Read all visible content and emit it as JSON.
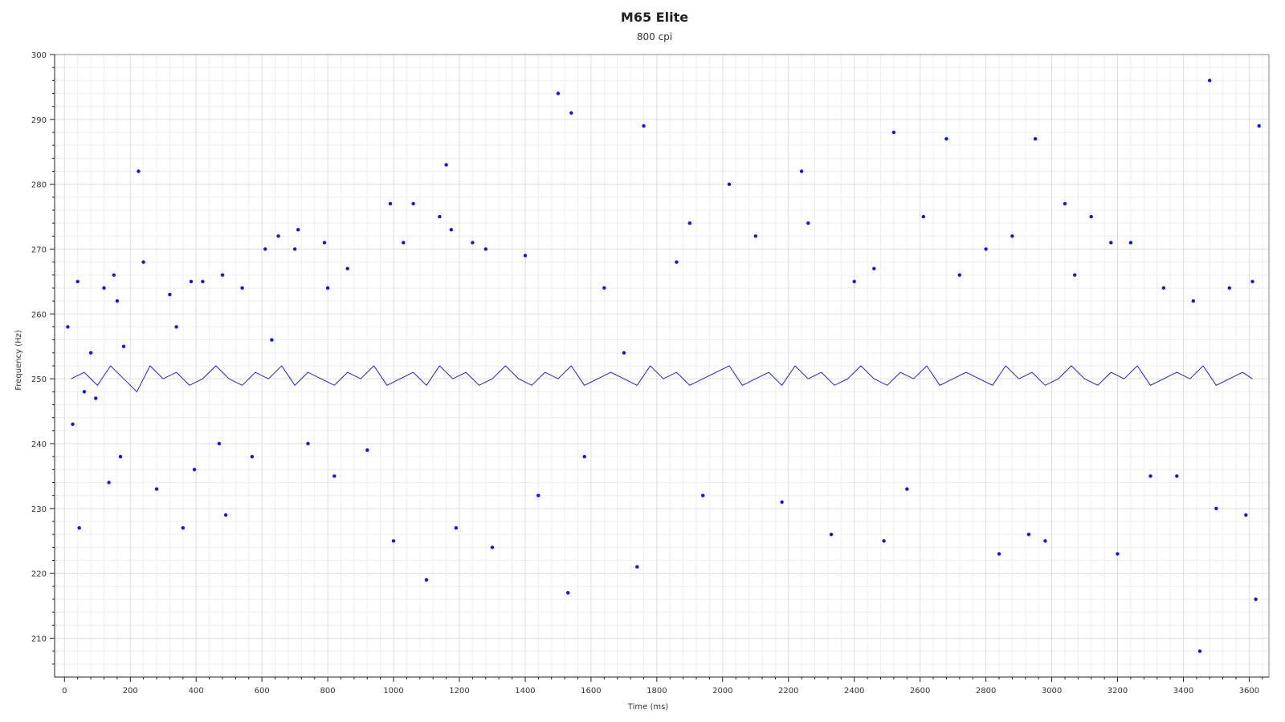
{
  "chart_data": {
    "type": "scatter",
    "title": "M65 Elite",
    "subtitle": "800 cpi",
    "xlabel": "Time (ms)",
    "ylabel": "Frequency (Hz)",
    "xlim": [
      -30,
      3660
    ],
    "ylim": [
      204,
      300
    ],
    "xticks": [
      0,
      200,
      400,
      600,
      800,
      1000,
      1200,
      1400,
      1600,
      1800,
      2000,
      2200,
      2400,
      2600,
      2800,
      3000,
      3200,
      3400,
      3600
    ],
    "yticks": [
      210,
      220,
      230,
      240,
      250,
      260,
      270,
      280,
      290,
      300
    ],
    "grid": true,
    "colors": {
      "points": "#1010ff",
      "line": "#1f1fd8"
    },
    "series": [
      {
        "kind": "points",
        "x": [
          10,
          25,
          40,
          45,
          60,
          80,
          95,
          120,
          135,
          150,
          160,
          170,
          180,
          225,
          240,
          280,
          320,
          340,
          360,
          385,
          395,
          420,
          470,
          480,
          490,
          540,
          570,
          610,
          630,
          650,
          700,
          710,
          740,
          790,
          800,
          820,
          860,
          920,
          990,
          1000,
          1030,
          1060,
          1100,
          1140,
          1160,
          1175,
          1190,
          1240,
          1280,
          1300,
          1400,
          1440,
          1500,
          1530,
          1540,
          1580,
          1640,
          1700,
          1740,
          1760,
          1860,
          1900,
          1940,
          2020,
          2100,
          2180,
          2240,
          2260,
          2330,
          2400,
          2460,
          2490,
          2520,
          2560,
          2610,
          2680,
          2720,
          2800,
          2840,
          2880,
          2930,
          2950,
          2980,
          3040,
          3070,
          3120,
          3180,
          3200,
          3240,
          3300,
          3340,
          3380,
          3430,
          3450,
          3480,
          3500,
          3540,
          3590,
          3610,
          3620,
          3630
        ],
        "y": [
          258,
          243,
          265,
          227,
          248,
          254,
          247,
          264,
          234,
          266,
          262,
          238,
          255,
          282,
          268,
          233,
          263,
          258,
          227,
          265,
          236,
          265,
          240,
          266,
          229,
          264,
          238,
          270,
          256,
          272,
          270,
          273,
          240,
          271,
          264,
          235,
          267,
          239,
          277,
          225,
          271,
          277,
          219,
          275,
          283,
          273,
          227,
          271,
          270,
          224,
          269,
          232,
          294,
          217,
          291,
          238,
          264,
          254,
          221,
          289,
          268,
          274,
          232,
          280,
          272,
          231,
          282,
          274,
          226,
          265,
          267,
          225,
          288,
          233,
          275,
          287,
          266,
          270,
          223,
          272,
          226,
          287,
          225,
          277,
          266,
          275,
          271,
          223,
          271,
          235,
          264,
          235,
          262,
          208,
          296,
          230,
          264,
          229,
          265,
          216,
          289
        ]
      },
      {
        "kind": "line",
        "x": [
          20,
          60,
          100,
          140,
          180,
          220,
          260,
          300,
          340,
          380,
          420,
          460,
          500,
          540,
          580,
          620,
          660,
          700,
          740,
          780,
          820,
          860,
          900,
          940,
          980,
          1020,
          1060,
          1100,
          1140,
          1180,
          1220,
          1260,
          1300,
          1340,
          1380,
          1420,
          1460,
          1500,
          1540,
          1580,
          1620,
          1660,
          1700,
          1740,
          1780,
          1820,
          1860,
          1900,
          1940,
          1980,
          2020,
          2060,
          2100,
          2140,
          2180,
          2220,
          2260,
          2300,
          2340,
          2380,
          2420,
          2460,
          2500,
          2540,
          2580,
          2620,
          2660,
          2700,
          2740,
          2780,
          2820,
          2860,
          2900,
          2940,
          2980,
          3020,
          3060,
          3100,
          3140,
          3180,
          3220,
          3260,
          3300,
          3340,
          3380,
          3420,
          3460,
          3500,
          3540,
          3580,
          3610
        ],
        "y": [
          250,
          251,
          249,
          252,
          250,
          248,
          252,
          250,
          251,
          249,
          250,
          252,
          250,
          249,
          251,
          250,
          252,
          249,
          251,
          250,
          249,
          251,
          250,
          252,
          249,
          250,
          251,
          249,
          252,
          250,
          251,
          249,
          250,
          252,
          250,
          249,
          251,
          250,
          252,
          249,
          250,
          251,
          250,
          249,
          252,
          250,
          251,
          249,
          250,
          251,
          252,
          249,
          250,
          251,
          249,
          252,
          250,
          251,
          249,
          250,
          252,
          250,
          249,
          251,
          250,
          252,
          249,
          250,
          251,
          250,
          249,
          252,
          250,
          251,
          249,
          250,
          252,
          250,
          249,
          251,
          250,
          252,
          249,
          250,
          251,
          250,
          252,
          249,
          250,
          251,
          250
        ]
      }
    ]
  }
}
